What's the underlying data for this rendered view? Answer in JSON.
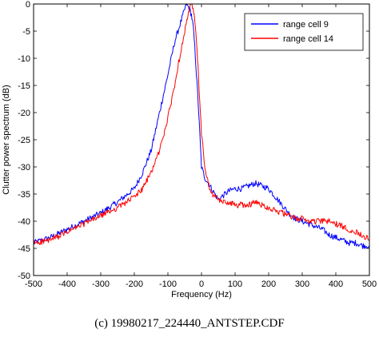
{
  "chart_data": {
    "type": "line",
    "xlabel": "Frequency (Hz)",
    "ylabel": "Clutter power spectrum (dB)",
    "xlim": [
      -500,
      500
    ],
    "ylim": [
      -50,
      0
    ],
    "xticks": [
      -500,
      -400,
      -300,
      -200,
      -100,
      0,
      100,
      200,
      300,
      400,
      500
    ],
    "yticks": [
      0,
      -5,
      -10,
      -15,
      -20,
      -25,
      -30,
      -35,
      -40,
      -45,
      -50
    ],
    "grid": false,
    "legend_position": "top-right",
    "series": [
      {
        "name": "range cell 9",
        "color": "#0000ff",
        "x": [
          -500,
          -450,
          -400,
          -350,
          -300,
          -250,
          -200,
          -175,
          -150,
          -125,
          -100,
          -80,
          -70,
          -60,
          -50,
          -45,
          -40,
          -35,
          -30,
          -25,
          -20,
          -15,
          -10,
          -5,
          0,
          10,
          20,
          30,
          40,
          50,
          60,
          80,
          100,
          120,
          140,
          160,
          180,
          200,
          220,
          240,
          260,
          280,
          300,
          320,
          340,
          360,
          380,
          400,
          420,
          440,
          460,
          480,
          500
        ],
        "y": [
          -44,
          -43,
          -41.5,
          -40,
          -38.5,
          -36.5,
          -34,
          -31,
          -27,
          -20,
          -13,
          -7,
          -5,
          -3,
          -1,
          0,
          -0.5,
          -1,
          -2,
          -4,
          -8,
          -13,
          -18,
          -24,
          -30,
          -32,
          -33,
          -34,
          -35,
          -36,
          -35.5,
          -34.5,
          -34,
          -34,
          -33.5,
          -33,
          -33.5,
          -34,
          -35.5,
          -37,
          -38.5,
          -39.5,
          -40,
          -40.5,
          -41,
          -41.5,
          -42.5,
          -43,
          -43.5,
          -44,
          -44,
          -44.5,
          -44.5
        ]
      },
      {
        "name": "range cell 14",
        "color": "#ff0000",
        "x": [
          -500,
          -450,
          -400,
          -350,
          -300,
          -250,
          -200,
          -175,
          -150,
          -125,
          -100,
          -80,
          -60,
          -50,
          -40,
          -35,
          -30,
          -25,
          -20,
          -15,
          -10,
          -5,
          0,
          10,
          20,
          30,
          40,
          50,
          60,
          80,
          100,
          120,
          140,
          160,
          180,
          200,
          220,
          240,
          260,
          280,
          300,
          320,
          340,
          360,
          380,
          400,
          420,
          440,
          460,
          480,
          500
        ],
        "y": [
          -44,
          -43.5,
          -42,
          -40.5,
          -39,
          -37.5,
          -35.5,
          -34,
          -31,
          -27,
          -21,
          -15,
          -8,
          -5,
          -2,
          -1,
          0,
          -1,
          -3,
          -7,
          -12,
          -18,
          -24,
          -30,
          -33,
          -35,
          -35.5,
          -36,
          -36.5,
          -36.5,
          -37,
          -37,
          -37,
          -36.5,
          -37,
          -37.5,
          -38,
          -38.5,
          -39,
          -39.5,
          -39.5,
          -40,
          -40,
          -40,
          -40,
          -40.5,
          -41,
          -41.5,
          -42,
          -42.5,
          -43.5
        ]
      }
    ]
  },
  "caption": "(c)  19980217_224440_ANTSTEP.CDF"
}
